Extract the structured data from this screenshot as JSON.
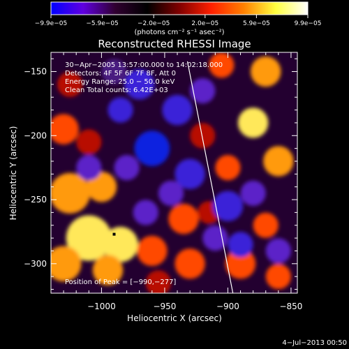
{
  "chart_data": {
    "type": "heatmap",
    "title": "Reconstructed RHESSI Image",
    "xlabel": "Heliocentric X (arcsec)",
    "ylabel": "Heliocentric Y (arcsec)",
    "xlim": [
      -1040,
      -845
    ],
    "ylim": [
      -323,
      -135
    ],
    "xticks": [
      -1000,
      -950,
      -900,
      -850
    ],
    "xtick_labels": [
      "−1000",
      "−950",
      "−900",
      "−850"
    ],
    "yticks": [
      -150,
      -200,
      -250,
      -300
    ],
    "ytick_labels": [
      "−150",
      "−200",
      "−250",
      "−300"
    ],
    "colorbar": {
      "range": [
        -9.9e-05,
        9.9e-05
      ],
      "tick_labels": [
        "−9.9e−05",
        "−5.9e−05",
        "−2.0e−05",
        "2.0e−05",
        "5.9e−05",
        "9.9e−05"
      ],
      "unit_text": "(photons cm⁻² s⁻¹ asec⁻²)",
      "colors": [
        "#0000ff",
        "#6000e0",
        "#300030",
        "#000000",
        "#800000",
        "#ff2000",
        "#ff8000",
        "#ffff40",
        "#ffffff"
      ]
    },
    "annotations": [
      "30−Apr−2005 13:57:00.000 to 14:02:18.000",
      "Detectors: 4F 5F 6F 7F 8F, Att 0",
      "Energy Range: 25.0 − 50.0 keV",
      "Clean    Total counts: 6.42E+03"
    ],
    "peak_label": "Position of Peak = [−990,−277]",
    "peak": [
      -990,
      -277
    ],
    "blobs": [
      {
        "x": -1010,
        "y": -280,
        "v": 0.9,
        "r": 18
      },
      {
        "x": -985,
        "y": -285,
        "v": 0.95,
        "r": 14
      },
      {
        "x": -1025,
        "y": -245,
        "v": 0.8,
        "r": 16
      },
      {
        "x": -1000,
        "y": -240,
        "v": 0.7,
        "r": 12
      },
      {
        "x": -1030,
        "y": -300,
        "v": 0.75,
        "r": 14
      },
      {
        "x": -995,
        "y": -305,
        "v": 0.7,
        "r": 12
      },
      {
        "x": -960,
        "y": -290,
        "v": 0.55,
        "r": 12
      },
      {
        "x": -935,
        "y": -265,
        "v": 0.6,
        "r": 12
      },
      {
        "x": -930,
        "y": -300,
        "v": 0.5,
        "r": 12
      },
      {
        "x": -955,
        "y": -315,
        "v": 0.45,
        "r": 10
      },
      {
        "x": -1030,
        "y": -195,
        "v": 0.6,
        "r": 12
      },
      {
        "x": -1010,
        "y": -205,
        "v": 0.4,
        "r": 10
      },
      {
        "x": -1025,
        "y": -160,
        "v": 0.45,
        "r": 10
      },
      {
        "x": -880,
        "y": -190,
        "v": 0.85,
        "r": 12
      },
      {
        "x": -860,
        "y": -220,
        "v": 0.8,
        "r": 12
      },
      {
        "x": -870,
        "y": -150,
        "v": 0.75,
        "r": 12
      },
      {
        "x": -905,
        "y": -145,
        "v": 0.55,
        "r": 10
      },
      {
        "x": -900,
        "y": -225,
        "v": 0.5,
        "r": 10
      },
      {
        "x": -870,
        "y": -270,
        "v": 0.6,
        "r": 10
      },
      {
        "x": -890,
        "y": -300,
        "v": 0.65,
        "r": 12
      },
      {
        "x": -860,
        "y": -310,
        "v": 0.55,
        "r": 10
      },
      {
        "x": -920,
        "y": -200,
        "v": 0.45,
        "r": 10
      },
      {
        "x": -915,
        "y": -260,
        "v": 0.4,
        "r": 9
      },
      {
        "x": -960,
        "y": -210,
        "v": -0.95,
        "r": 14
      },
      {
        "x": -970,
        "y": -160,
        "v": -0.8,
        "r": 12
      },
      {
        "x": -940,
        "y": -180,
        "v": -0.7,
        "r": 12
      },
      {
        "x": -985,
        "y": -180,
        "v": -0.65,
        "r": 10
      },
      {
        "x": -930,
        "y": -230,
        "v": -0.7,
        "r": 12
      },
      {
        "x": -945,
        "y": -245,
        "v": -0.55,
        "r": 10
      },
      {
        "x": -900,
        "y": -255,
        "v": -0.75,
        "r": 12
      },
      {
        "x": -880,
        "y": -245,
        "v": -0.6,
        "r": 10
      },
      {
        "x": -980,
        "y": -225,
        "v": -0.55,
        "r": 10
      },
      {
        "x": -1010,
        "y": -225,
        "v": -0.55,
        "r": 10
      },
      {
        "x": -965,
        "y": -260,
        "v": -0.5,
        "r": 10
      },
      {
        "x": -910,
        "y": -280,
        "v": -0.55,
        "r": 10
      },
      {
        "x": -890,
        "y": -285,
        "v": -0.65,
        "r": 10
      },
      {
        "x": -860,
        "y": -290,
        "v": -0.45,
        "r": 10
      },
      {
        "x": -920,
        "y": -165,
        "v": -0.45,
        "r": 10
      },
      {
        "x": -990,
        "y": -150,
        "v": -0.4,
        "r": 10
      }
    ],
    "limb_line": {
      "x1": -932,
      "y1": -142,
      "x2": -896,
      "y2": -323
    }
  },
  "footer": {
    "date": "4−Jul−2013 00:50"
  }
}
